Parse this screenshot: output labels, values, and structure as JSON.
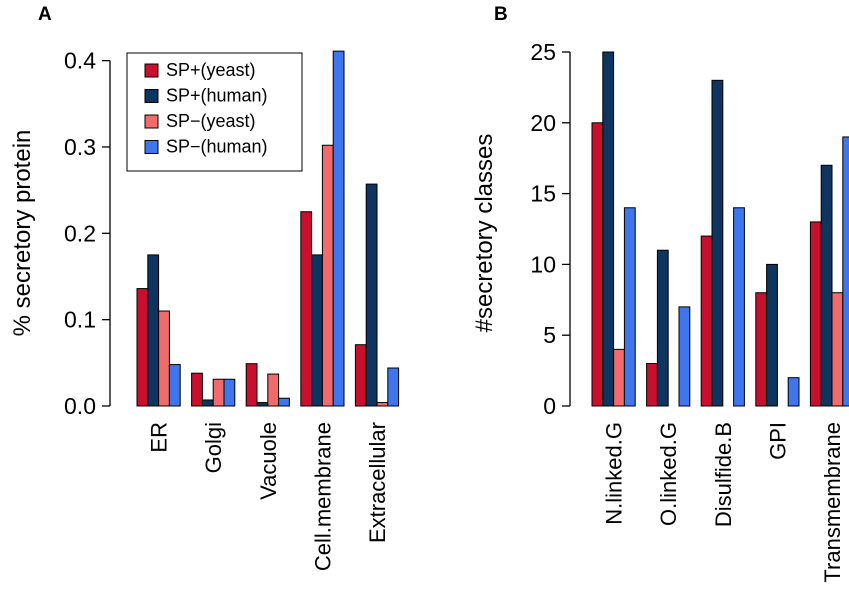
{
  "chart_data": [
    {
      "panel": "A",
      "type": "bar",
      "ylabel": "% secretory protein",
      "ylim": [
        0,
        0.41
      ],
      "yticks": [
        "0.0",
        "0.1",
        "0.2",
        "0.3",
        "0.4"
      ],
      "categories": [
        "ER",
        "Golgi",
        "Vacuole",
        "Cell.membrane",
        "Extracellular"
      ],
      "legend": {
        "placement": "top-left"
      },
      "series": [
        {
          "name": "SP+(yeast)",
          "color": "#c8102e",
          "values": [
            0.136,
            0.038,
            0.049,
            0.225,
            0.071
          ]
        },
        {
          "name": "SP+(human)",
          "color": "#0e3460",
          "values": [
            0.175,
            0.007,
            0.004,
            0.175,
            0.257
          ]
        },
        {
          "name": "SP−(yeast)",
          "color": "#f06b6b",
          "values": [
            0.11,
            0.031,
            0.037,
            0.302,
            0.004
          ]
        },
        {
          "name": "SP−(human)",
          "color": "#3f76ee",
          "values": [
            0.048,
            0.031,
            0.009,
            0.411,
            0.044
          ]
        }
      ]
    },
    {
      "panel": "B",
      "type": "bar",
      "ylabel": "#secretory classes",
      "ylim": [
        0,
        25
      ],
      "yticks": [
        "0",
        "5",
        "10",
        "15",
        "20",
        "25"
      ],
      "categories": [
        "N.linked.G",
        "O.linked.G",
        "Disulfide.B",
        "GPI",
        "Transmembrane"
      ],
      "series": [
        {
          "name": "SP+(yeast)",
          "color": "#c8102e",
          "values": [
            20,
            3,
            12,
            8,
            13
          ]
        },
        {
          "name": "SP+(human)",
          "color": "#0e3460",
          "values": [
            25,
            11,
            23,
            10,
            17
          ]
        },
        {
          "name": "SP−(yeast)",
          "color": "#f06b6b",
          "values": [
            4,
            0,
            0,
            0,
            8
          ]
        },
        {
          "name": "SP−(human)",
          "color": "#3f76ee",
          "values": [
            14,
            7,
            14,
            2,
            19
          ]
        }
      ]
    }
  ]
}
